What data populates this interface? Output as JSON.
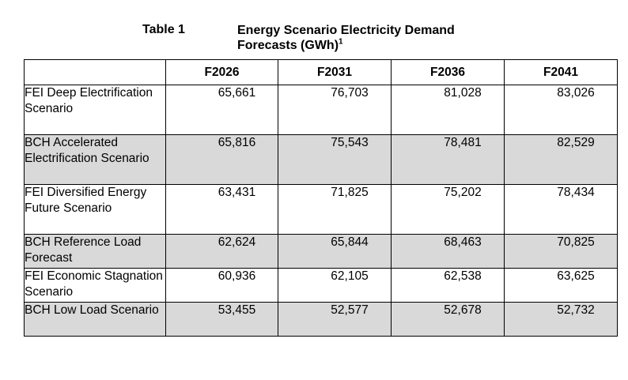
{
  "caption": {
    "label": "Table 1",
    "title": "Energy Scenario Electricity Demand Forecasts (GWh)",
    "footnote_mark": "1"
  },
  "table": {
    "columns": [
      "",
      "F2026",
      "F2031",
      "F2036",
      "F2041"
    ],
    "rows": [
      {
        "label": "FEI Deep Electrification Scenario",
        "values": [
          "65,661",
          "76,703",
          "81,028",
          "83,026"
        ]
      },
      {
        "label": "BCH Accelerated Electrification Scenario",
        "values": [
          "65,816",
          "75,543",
          "78,481",
          "82,529"
        ]
      },
      {
        "label": "FEI Diversified Energy Future Scenario",
        "values": [
          "63,431",
          "71,825",
          "75,202",
          "78,434"
        ]
      },
      {
        "label": "BCH Reference Load Forecast",
        "values": [
          "62,624",
          "65,844",
          "68,463",
          "70,825"
        ]
      },
      {
        "label": "FEI Economic Stagnation Scenario",
        "values": [
          "60,936",
          "62,105",
          "62,538",
          "63,625"
        ]
      },
      {
        "label": "BCH Low Load Scenario",
        "values": [
          "53,455",
          "52,577",
          "52,678",
          "52,732"
        ]
      }
    ],
    "shaded_row_color": "#d9d9d9"
  }
}
